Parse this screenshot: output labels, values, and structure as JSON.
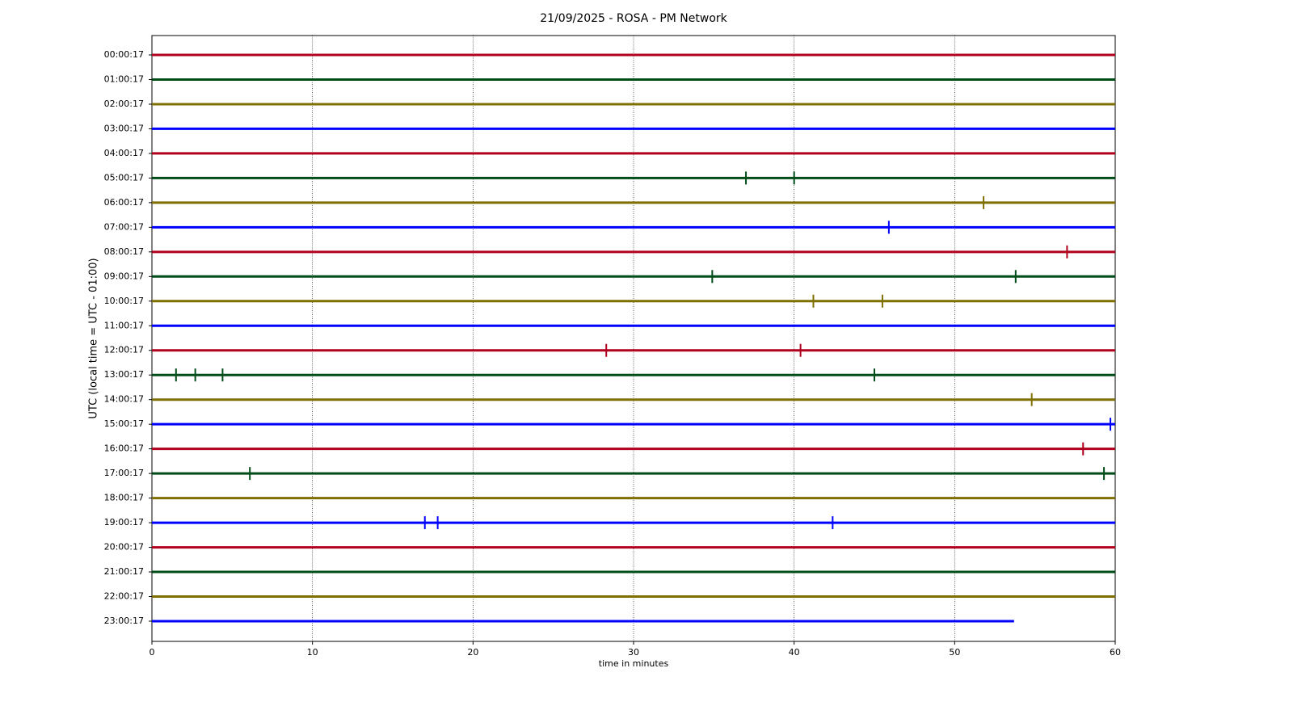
{
  "chart_data": {
    "type": "dayplot",
    "title": "21/09/2025 - ROSA - PM Network",
    "xlabel": "time in minutes",
    "ylabel": "UTC (local time = UTC - 01:00)",
    "xlim": [
      0,
      60
    ],
    "xticks": [
      0,
      10,
      20,
      30,
      40,
      50,
      60
    ],
    "grid": true,
    "rows": [
      {
        "label": "00:00:17",
        "color": "#b0001e",
        "end": 60,
        "events": []
      },
      {
        "label": "01:00:17",
        "color": "#004d1a",
        "end": 60,
        "events": []
      },
      {
        "label": "02:00:17",
        "color": "#7f6e00",
        "end": 60,
        "events": []
      },
      {
        "label": "03:00:17",
        "color": "#0000ff",
        "end": 60,
        "events": []
      },
      {
        "label": "04:00:17",
        "color": "#b0001e",
        "end": 60,
        "events": []
      },
      {
        "label": "05:00:17",
        "color": "#004d1a",
        "end": 60,
        "events": [
          37,
          40
        ]
      },
      {
        "label": "06:00:17",
        "color": "#7f6e00",
        "end": 60,
        "events": [
          51.8
        ]
      },
      {
        "label": "07:00:17",
        "color": "#0000ff",
        "end": 60,
        "events": [
          45.9
        ]
      },
      {
        "label": "08:00:17",
        "color": "#b0001e",
        "end": 60,
        "events": [
          57
        ]
      },
      {
        "label": "09:00:17",
        "color": "#004d1a",
        "end": 60,
        "events": [
          34.9,
          53.8
        ]
      },
      {
        "label": "10:00:17",
        "color": "#7f6e00",
        "end": 60,
        "events": [
          41.2,
          45.5
        ]
      },
      {
        "label": "11:00:17",
        "color": "#0000ff",
        "end": 60,
        "events": []
      },
      {
        "label": "12:00:17",
        "color": "#b0001e",
        "end": 60,
        "events": [
          28.3,
          40.4
        ]
      },
      {
        "label": "13:00:17",
        "color": "#004d1a",
        "end": 60,
        "events": [
          1.5,
          2.7,
          4.4,
          45
        ]
      },
      {
        "label": "14:00:17",
        "color": "#7f6e00",
        "end": 60,
        "events": [
          54.8
        ]
      },
      {
        "label": "15:00:17",
        "color": "#0000ff",
        "end": 60,
        "events": [
          59.7
        ]
      },
      {
        "label": "16:00:17",
        "color": "#b0001e",
        "end": 60,
        "events": [
          58
        ]
      },
      {
        "label": "17:00:17",
        "color": "#004d1a",
        "end": 60,
        "events": [
          6.1,
          59.3
        ]
      },
      {
        "label": "18:00:17",
        "color": "#7f6e00",
        "end": 60,
        "events": []
      },
      {
        "label": "19:00:17",
        "color": "#0000ff",
        "end": 60,
        "events": [
          17,
          17.8,
          42.4
        ]
      },
      {
        "label": "20:00:17",
        "color": "#b0001e",
        "end": 60,
        "events": []
      },
      {
        "label": "21:00:17",
        "color": "#004d1a",
        "end": 60,
        "events": []
      },
      {
        "label": "22:00:17",
        "color": "#7f6e00",
        "end": 60,
        "events": []
      },
      {
        "label": "23:00:17",
        "color": "#0000ff",
        "end": 53.7,
        "events": []
      }
    ]
  }
}
